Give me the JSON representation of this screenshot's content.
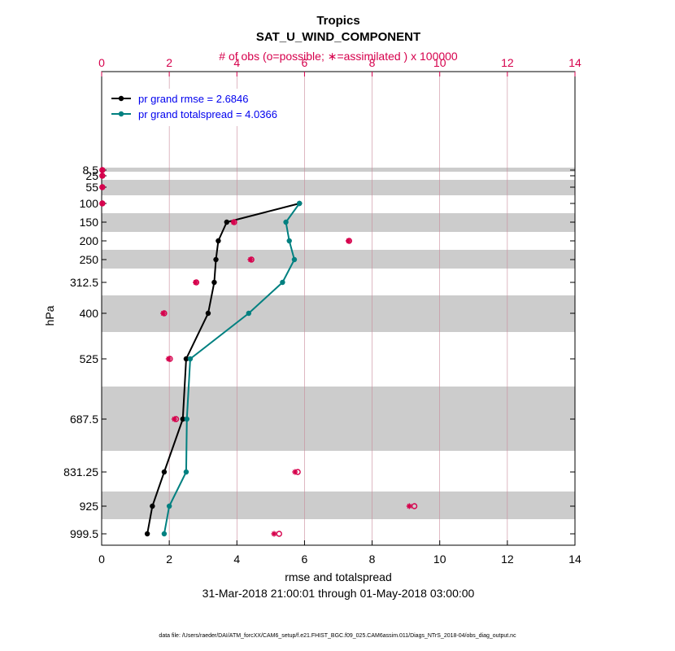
{
  "chart_data": {
    "type": "line",
    "title": "Tropics",
    "subtitle": "SAT_U_WIND_COMPONENT",
    "top_axis_label": "# of obs (o=possible; ∗=assimilated ) x 100000",
    "xlabel": "rmse and totalspread",
    "ylabel": "hPa",
    "date_range": "31-Mar-2018 21:00:01 through 01-May-2018 03:00:00",
    "footnote": "data file: /Users/raeder/DAI/ATM_forcXX/CAM6_setup/f.e21.FHIST_BGC.f09_025.CAM6assim.011/Diags_NTrS_2018-04/obs_diag_output.nc",
    "xlim": [
      0,
      14
    ],
    "x_ticks": [
      "0",
      "2",
      "4",
      "6",
      "8",
      "10",
      "12",
      "14"
    ],
    "top_ticks": [
      "0",
      "2",
      "4",
      "6",
      "8",
      "10",
      "12",
      "14"
    ],
    "levels": [
      "8.5",
      "25",
      "55",
      "100",
      "150",
      "200",
      "250",
      "312.5",
      "400",
      "525",
      "687.5",
      "831.25",
      "925",
      "999.5"
    ],
    "bands": [
      [
        "8.5",
        "25"
      ],
      [
        "55",
        "100"
      ],
      [
        "150",
        "200"
      ],
      [
        "250",
        "312.5"
      ],
      [
        "400",
        "525"
      ],
      [
        "687.5",
        "831.25"
      ],
      [
        "925",
        "999.5"
      ]
    ],
    "legend": [
      "pr grand rmse = 2.6846",
      "pr grand totalspread = 4.0366"
    ],
    "series": [
      {
        "name": "pr grand rmse = 2.6846",
        "color": "#000000",
        "levels": [
          "100",
          "150",
          "200",
          "250",
          "312.5",
          "400",
          "525",
          "687.5",
          "831.25",
          "925",
          "999.5"
        ],
        "values": [
          5.85,
          3.7,
          3.45,
          3.38,
          3.33,
          3.15,
          2.5,
          2.4,
          1.85,
          1.5,
          1.35
        ]
      },
      {
        "name": "pr grand totalspread = 4.0366",
        "color": "#008080",
        "levels": [
          "100",
          "150",
          "200",
          "250",
          "312.5",
          "400",
          "525",
          "687.5",
          "831.25",
          "925",
          "999.5"
        ],
        "values": [
          5.85,
          5.45,
          5.55,
          5.7,
          5.35,
          4.35,
          2.62,
          2.52,
          2.5,
          2.0,
          1.85
        ]
      }
    ],
    "obs_possible": {
      "color": "#d6004c",
      "levels": [
        "8.5",
        "25",
        "55",
        "100",
        "150",
        "200",
        "250",
        "312.5",
        "400",
        "525",
        "687.5",
        "831.25",
        "925",
        "999.5"
      ],
      "values": [
        0.02,
        0.02,
        0.02,
        0.02,
        3.92,
        7.32,
        4.43,
        2.8,
        1.85,
        2.02,
        2.2,
        5.8,
        9.25,
        5.25
      ]
    },
    "obs_assimilated": {
      "color": "#d6004c",
      "levels": [
        "8.5",
        "25",
        "55",
        "100",
        "150",
        "200",
        "250",
        "312.5",
        "400",
        "525",
        "687.5",
        "831.25",
        "925",
        "999.5"
      ],
      "values": [
        0.02,
        0.02,
        0.02,
        0.02,
        3.9,
        7.3,
        4.4,
        2.78,
        1.82,
        1.98,
        2.15,
        5.72,
        9.1,
        5.1
      ]
    }
  }
}
